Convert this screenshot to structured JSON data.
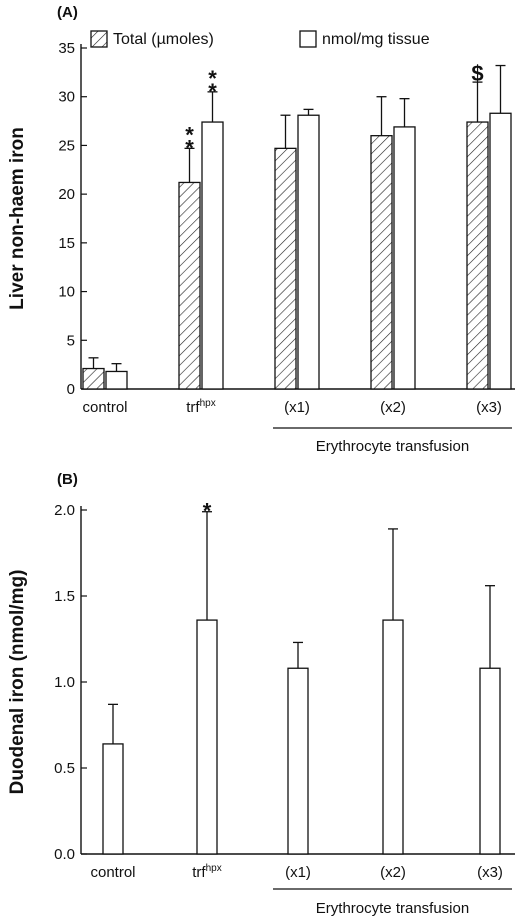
{
  "chart_data": [
    {
      "panel_label": "(A)",
      "type": "bar",
      "ylabel": "Liver non-haem iron",
      "xlabel": "",
      "ylim": [
        0,
        35
      ],
      "yticks": [
        "0",
        "5",
        "10",
        "15",
        "20",
        "25",
        "30",
        "35"
      ],
      "ytick_values": [
        0,
        5,
        10,
        15,
        20,
        25,
        30,
        35
      ],
      "categories": [
        "control",
        "trf",
        "(x1)",
        "(x2)",
        "(x3)"
      ],
      "category_superscripts": [
        "",
        "hpx",
        "",
        "",
        ""
      ],
      "group_label": "Erythrocyte transfusion",
      "legend": [
        "Total (µmoles)",
        "nmol/mg tissue"
      ],
      "legend_position": "top",
      "series": [
        {
          "name": "Total (µmoles)",
          "pattern": "hatched",
          "values": [
            2.1,
            21.2,
            24.7,
            26.0,
            27.4
          ],
          "errors": [
            1.1,
            3.5,
            3.4,
            4.0,
            4.1
          ]
        },
        {
          "name": "nmol/mg tissue",
          "pattern": "open",
          "values": [
            1.8,
            27.4,
            28.1,
            26.9,
            28.3
          ],
          "errors": [
            0.8,
            3.1,
            0.6,
            2.9,
            4.9
          ]
        }
      ],
      "annotations": [
        {
          "text": "*",
          "category": 1,
          "series": 0,
          "stack": 2
        },
        {
          "text": "*",
          "category": 1,
          "series": 1,
          "stack": 2
        },
        {
          "text": "$",
          "category": 4,
          "series": 0,
          "stack": 1
        }
      ]
    },
    {
      "panel_label": "(B)",
      "type": "bar",
      "ylabel": "Duodenal iron (nmol/mg)",
      "xlabel": "",
      "ylim": [
        0,
        2.0
      ],
      "yticks": [
        "0.0",
        "0.5",
        "1.0",
        "1.5",
        "2.0"
      ],
      "ytick_values": [
        0,
        0.5,
        1.0,
        1.5,
        2.0
      ],
      "categories": [
        "control",
        "trf",
        "(x1)",
        "(x2)",
        "(x3)"
      ],
      "category_superscripts": [
        "",
        "hpx",
        "",
        "",
        ""
      ],
      "group_label": "Erythrocyte transfusion",
      "series": [
        {
          "pattern": "open",
          "values": [
            0.64,
            1.36,
            1.08,
            1.36,
            1.08
          ],
          "errors": [
            0.23,
            0.63,
            0.15,
            0.53,
            0.48
          ]
        }
      ],
      "annotations": [
        {
          "text": "*",
          "category": 1,
          "series": 0,
          "stack": 1
        }
      ]
    }
  ]
}
